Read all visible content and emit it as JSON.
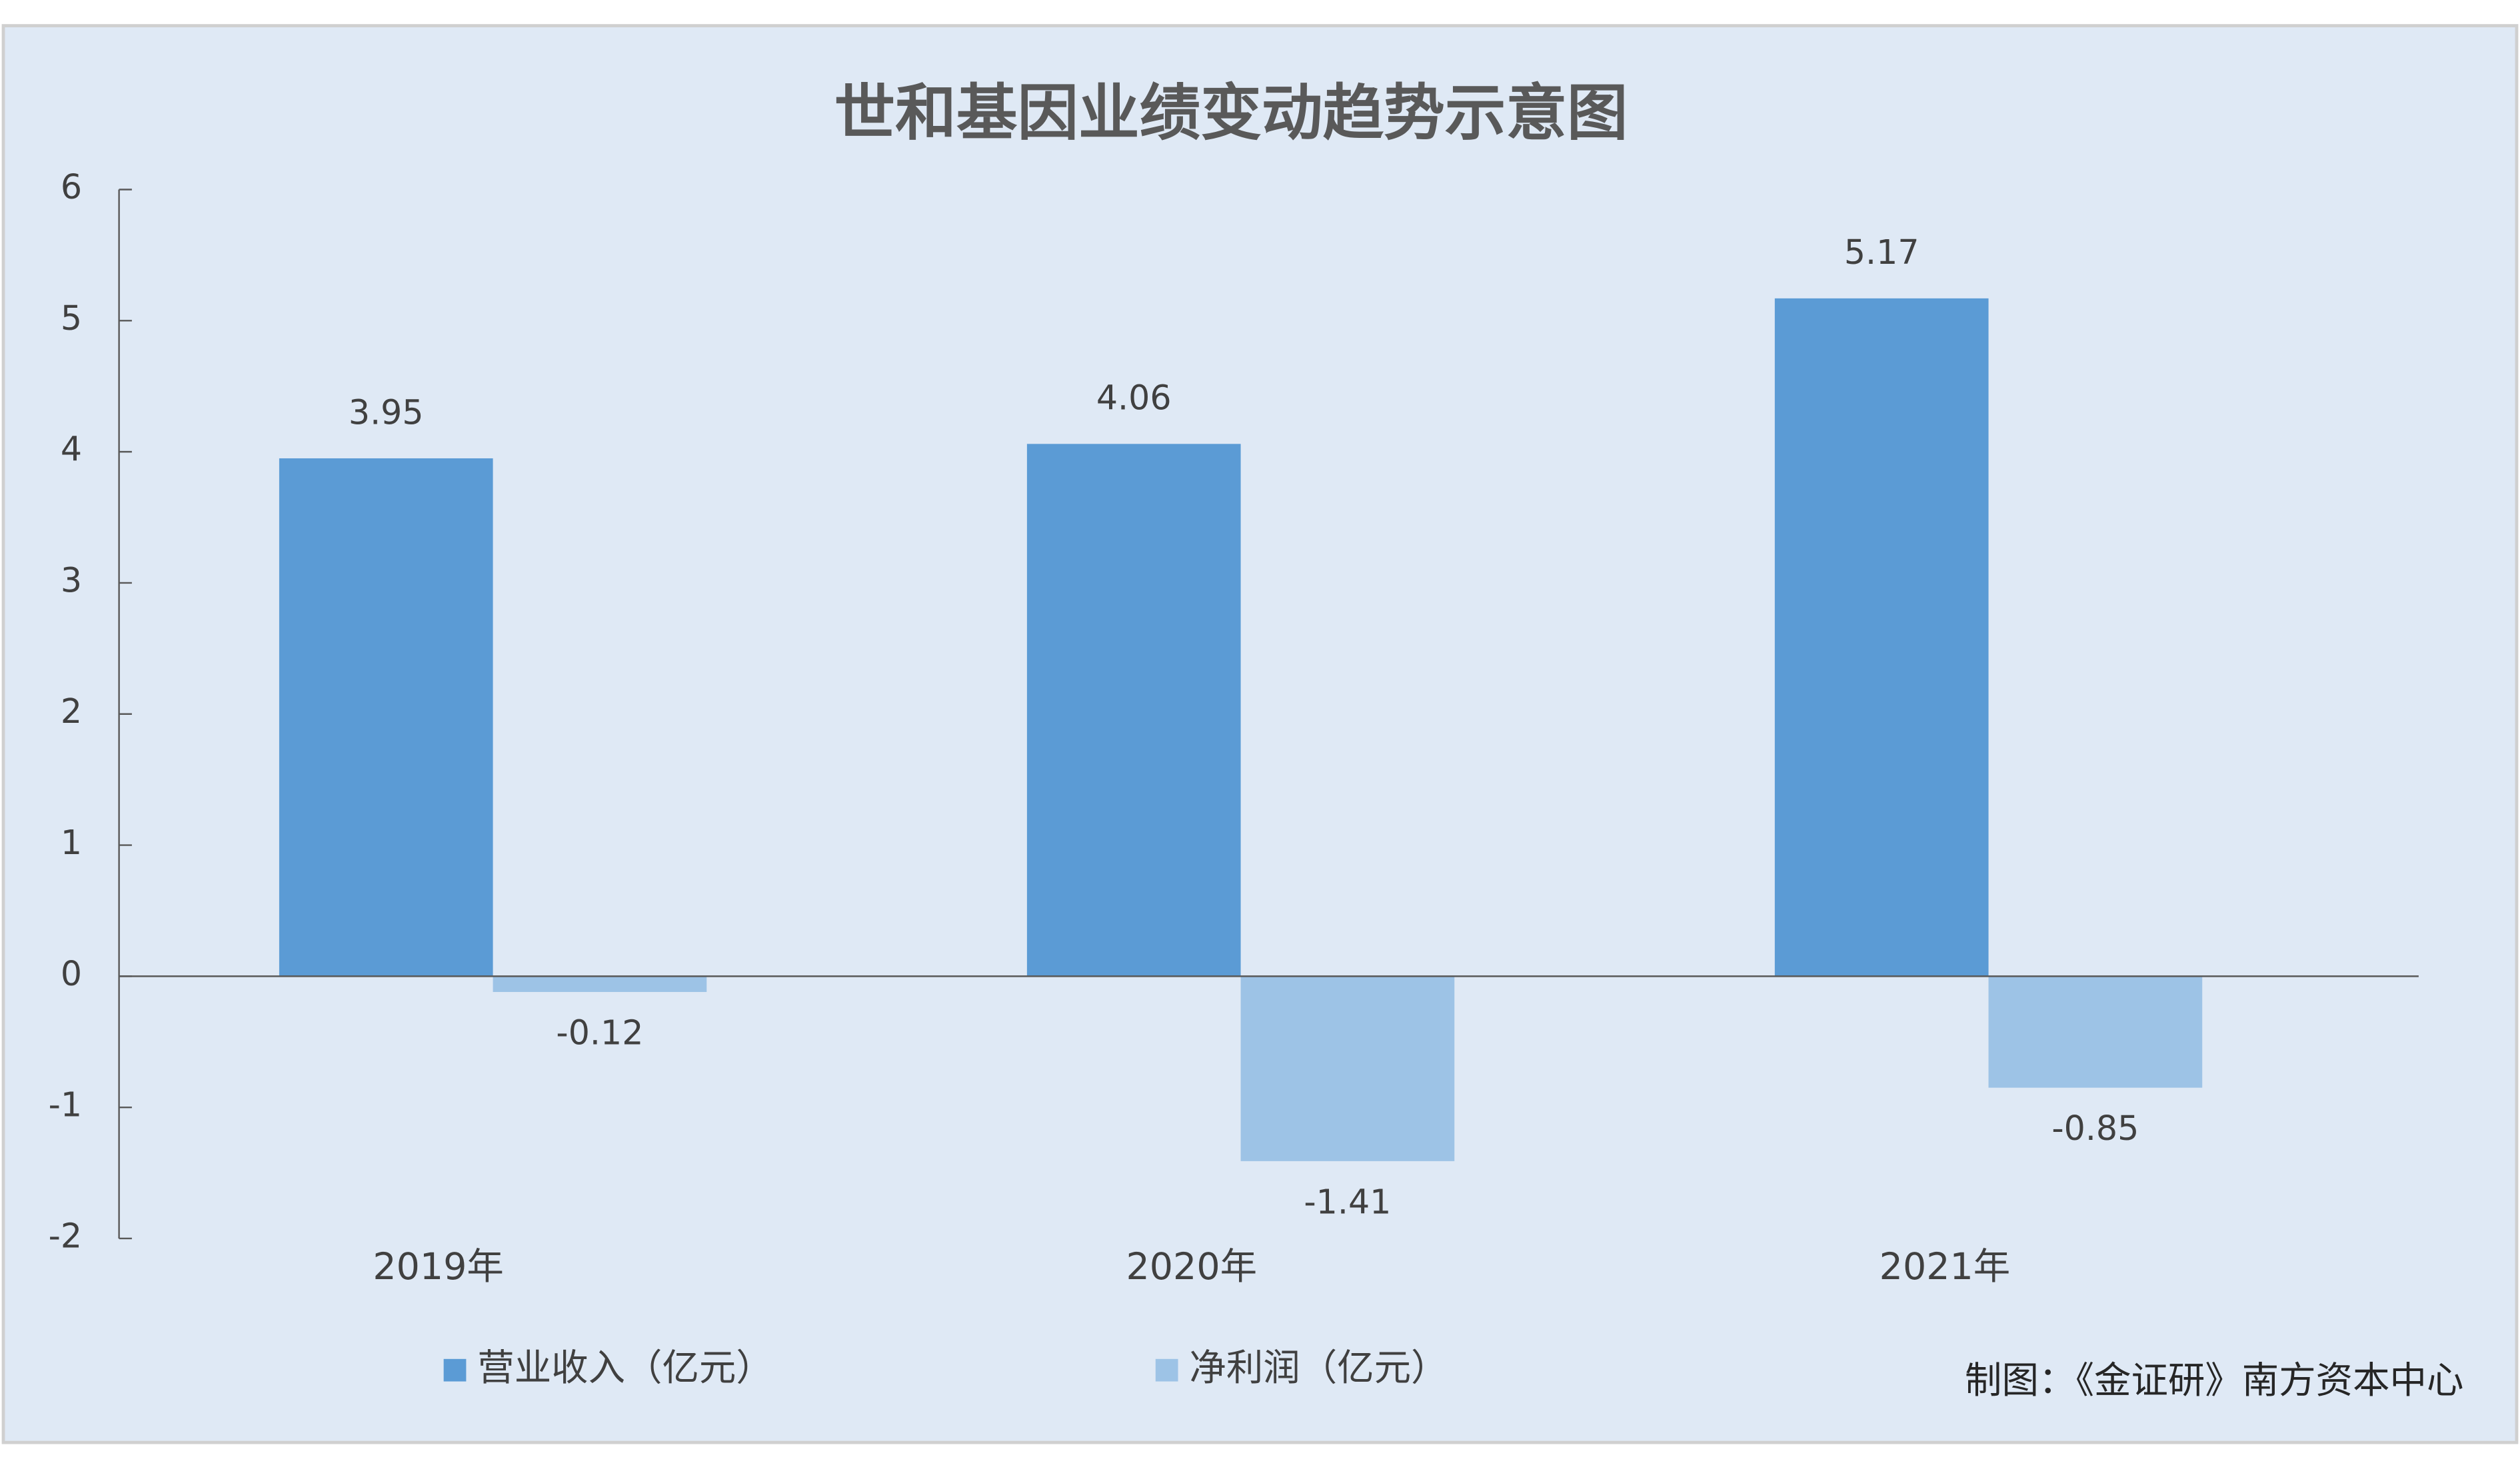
{
  "chart_data": {
    "type": "bar",
    "title": "世和基因业绩变动趋势示意图",
    "categories": [
      "2019年",
      "2020年",
      "2021年"
    ],
    "series": [
      {
        "name": "营业收入（亿元）",
        "color": "#5b9bd5",
        "values": [
          3.95,
          4.06,
          5.17
        ]
      },
      {
        "name": "净利润（亿元）",
        "color": "#9dc3e6",
        "values": [
          -0.12,
          -1.41,
          -0.85
        ]
      }
    ],
    "ylim": [
      -2,
      6
    ],
    "yticks": [
      -2,
      -1,
      0,
      1,
      2,
      3,
      4,
      5,
      6
    ],
    "grid": false,
    "legend": "bottom",
    "source": "制图：《金证研》南方资本中心"
  }
}
